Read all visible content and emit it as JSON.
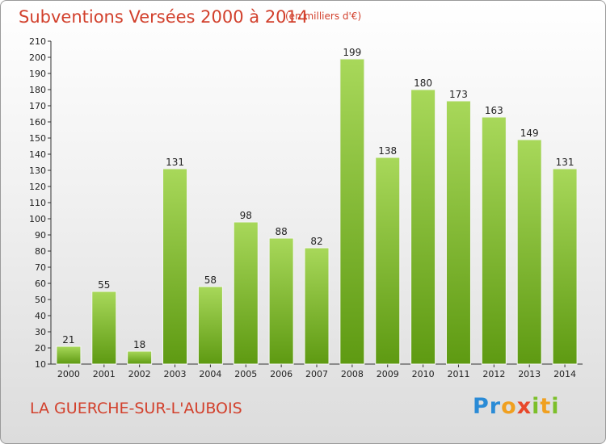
{
  "header": {
    "title": "Subventions Versées 2000 à 2014",
    "subtitle": "(en milliers d'€)"
  },
  "footer": {
    "commune": "LA GUERCHE-SUR-L'AUBOIS",
    "logo_text": "Proxiti"
  },
  "colors": {
    "bar_top": "#a8d85a",
    "bar_bottom": "#5e9a12",
    "text_accent": "#d2402c"
  },
  "chart_data": {
    "type": "bar",
    "title": "Subventions Versées 2000 à 2014",
    "xlabel": "",
    "ylabel": "",
    "categories": [
      "2000",
      "2001",
      "2002",
      "2003",
      "2004",
      "2005",
      "2006",
      "2007",
      "2008",
      "2009",
      "2010",
      "2011",
      "2012",
      "2013",
      "2014"
    ],
    "values": [
      21,
      55,
      18,
      131,
      58,
      98,
      88,
      82,
      199,
      138,
      180,
      173,
      163,
      149,
      131
    ],
    "ylim": [
      10,
      210
    ],
    "ytick_step": 10,
    "grid": false,
    "legend": "none"
  }
}
